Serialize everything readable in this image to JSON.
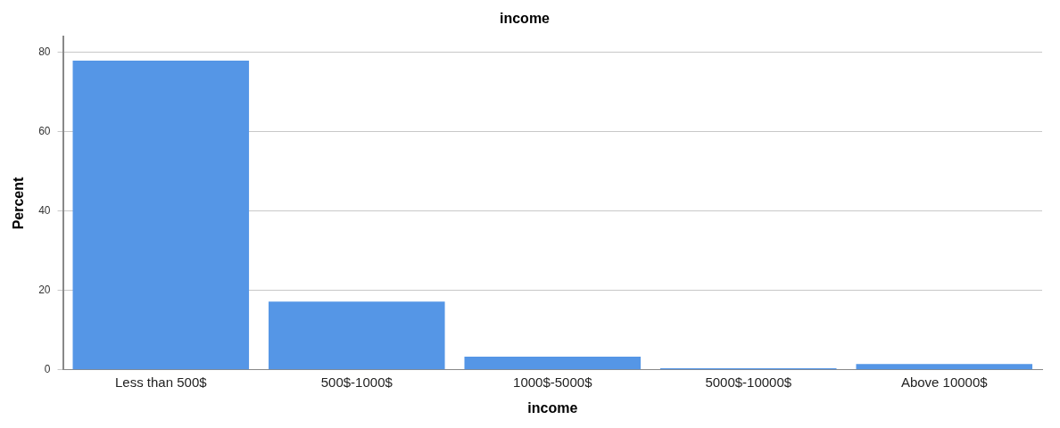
{
  "chart_data": {
    "type": "bar",
    "title": "income",
    "xlabel": "income",
    "ylabel": "Percent",
    "categories": [
      "Less than 500$",
      "500$-1000$",
      "1000$-5000$",
      "5000$-10000$",
      "Above 10000$"
    ],
    "values": [
      78,
      17.2,
      3.3,
      0.4,
      1.5
    ],
    "color": "#5596e6",
    "ylim": [
      0,
      84
    ],
    "yticks": [
      0,
      20,
      40,
      60,
      80
    ],
    "grid": "y",
    "legend": false
  }
}
